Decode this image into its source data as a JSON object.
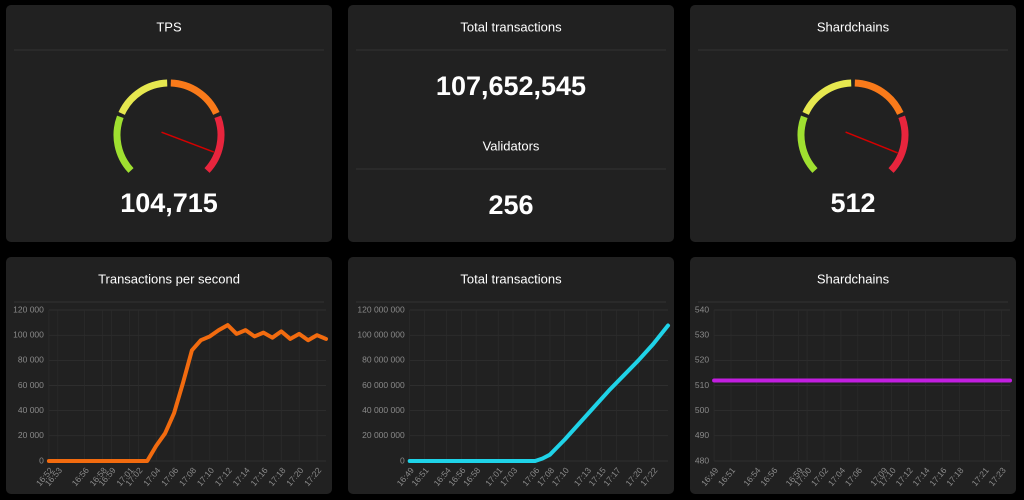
{
  "chart_data": [
    {
      "type": "gauge",
      "title": "TPS",
      "value": 104715,
      "value_label": "104,715",
      "range": [
        0,
        115000
      ],
      "segment_colors": [
        "#9fe030",
        "#e6e84f",
        "#f97a1a",
        "#e8253d"
      ],
      "needle_color": "#d40000"
    },
    {
      "type": "stat",
      "stats": [
        {
          "title": "Total transactions",
          "value": "107,652,545"
        },
        {
          "title": "Validators",
          "value": "256"
        }
      ]
    },
    {
      "type": "gauge",
      "title": "Shardchains",
      "value": 512,
      "value_label": "512",
      "range": [
        0,
        560
      ],
      "segment_colors": [
        "#9fe030",
        "#e6e84f",
        "#f97a1a",
        "#e8253d"
      ],
      "needle_color": "#d40000"
    },
    {
      "type": "line",
      "title": "Transactions per second",
      "grid": true,
      "x": [
        "16:52",
        "16:53",
        "16:54",
        "16:55",
        "16:56",
        "16:57",
        "16:58",
        "16:59",
        "17:00",
        "17:01",
        "17:02",
        "17:03",
        "17:04",
        "17:05",
        "17:06",
        "17:07",
        "17:08",
        "17:09",
        "17:10",
        "17:11",
        "17:12",
        "17:13",
        "17:14",
        "17:15",
        "17:16",
        "17:17",
        "17:18",
        "17:19",
        "17:20",
        "17:21",
        "17:22",
        "17:23"
      ],
      "series": [
        {
          "color": "#f26b0f",
          "values": [
            0,
            0,
            0,
            0,
            0,
            0,
            0,
            0,
            0,
            0,
            0,
            0,
            12000,
            22000,
            38000,
            62000,
            88000,
            96000,
            99000,
            104000,
            108000,
            101000,
            104000,
            99000,
            102000,
            98000,
            103000,
            97000,
            101000,
            96000,
            100000,
            97000
          ]
        }
      ],
      "xlim": [
        "16:52",
        "17:23"
      ],
      "xticks": [
        "16:52",
        "16:53",
        "16:56",
        "16:58",
        "16:59",
        "17:01",
        "17:02",
        "17:04",
        "17:06",
        "17:08",
        "17:10",
        "17:12",
        "17:14",
        "17:16",
        "17:18",
        "17:20",
        "17:22"
      ],
      "ylim": [
        0,
        120000
      ],
      "yticks": [
        0,
        {
          "value": 20000,
          "label": "20 000"
        },
        {
          "value": 40000,
          "label": "40 000"
        },
        {
          "value": 60000,
          "label": "60 000"
        },
        {
          "value": 80000,
          "label": "80 000"
        },
        {
          "value": 100000,
          "label": "100 000"
        },
        {
          "value": 120000,
          "label": "120 000"
        }
      ]
    },
    {
      "type": "line",
      "title": "Total transactions",
      "grid": true,
      "x": [
        "16:49",
        "16:55",
        "17:00",
        "17:05",
        "17:06",
        "17:07",
        "17:08",
        "17:09",
        "17:10",
        "17:12",
        "17:14",
        "17:16",
        "17:18",
        "17:20",
        "17:22",
        "17:24"
      ],
      "series": [
        {
          "color": "#1fd3e8",
          "values": [
            0,
            0,
            0,
            0,
            0,
            2000000,
            5000000,
            11000000,
            17000000,
            30000000,
            43000000,
            56000000,
            68000000,
            80000000,
            93000000,
            107652545
          ]
        }
      ],
      "xlim": [
        "16:49",
        "17:24"
      ],
      "xticks": [
        "16:49",
        "16:51",
        "16:54",
        "16:56",
        "16:58",
        "17:01",
        "17:03",
        "17:06",
        "17:08",
        "17:10",
        "17:13",
        "17:15",
        "17:17",
        "17:20",
        "17:22"
      ],
      "ylim": [
        0,
        120000000
      ],
      "yticks": [
        0,
        {
          "value": 20000000,
          "label": "20 000 000"
        },
        {
          "value": 40000000,
          "label": "40 000 000"
        },
        {
          "value": 60000000,
          "label": "60 000 000"
        },
        {
          "value": 80000000,
          "label": "80 000 000"
        },
        {
          "value": 100000000,
          "label": "100 000 000"
        },
        {
          "value": 120000000,
          "label": "120 000 000"
        }
      ]
    },
    {
      "type": "line",
      "title": "Shardchains",
      "grid": true,
      "x": [
        "16:49",
        "17:24"
      ],
      "series": [
        {
          "color": "#c21ee0",
          "values": [
            512,
            512
          ]
        }
      ],
      "xlim": [
        "16:49",
        "17:24"
      ],
      "xticks": [
        "16:49",
        "16:51",
        "16:54",
        "16:56",
        "16:59",
        "17:00",
        "17:02",
        "17:04",
        "17:06",
        "17:09",
        "17:10",
        "17:12",
        "17:14",
        "17:16",
        "17:18",
        "17:21",
        "17:23"
      ],
      "ylim": [
        480,
        540
      ],
      "yticks": [
        480,
        490,
        500,
        510,
        520,
        530,
        540
      ]
    }
  ]
}
